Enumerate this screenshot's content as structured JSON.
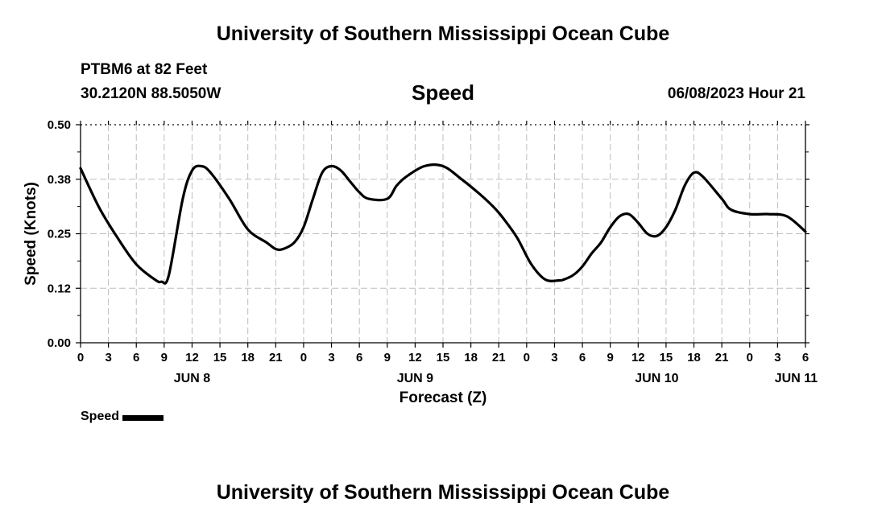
{
  "header": {
    "title": "University of Southern Mississippi Ocean Cube",
    "station": "PTBM6 at 82 Feet",
    "coords": "30.2120N  88.5050W",
    "date": "06/08/2023 Hour 21"
  },
  "footer": {
    "title": "University of Southern Mississippi Ocean Cube"
  },
  "legend": {
    "label": "Speed"
  },
  "chart_data": {
    "type": "line",
    "title": "Speed",
    "xlabel": "Forecast (Z)",
    "ylabel": "Speed (Knots)",
    "ylim": [
      0.0,
      0.5
    ],
    "yticks": [
      "0.00",
      "0.12",
      "0.25",
      "0.38",
      "0.50"
    ],
    "xlim_hours": [
      0,
      78
    ],
    "xticks": [
      "0",
      "3",
      "6",
      "9",
      "12",
      "15",
      "18",
      "21",
      "0",
      "3",
      "6",
      "9",
      "12",
      "15",
      "18",
      "21",
      "0",
      "3",
      "6",
      "9",
      "12",
      "15",
      "18",
      "21",
      "0",
      "3",
      "6"
    ],
    "date_labels": [
      {
        "label": "JUN 8",
        "hour": 12
      },
      {
        "label": "JUN 9",
        "hour": 36
      },
      {
        "label": "JUN 10",
        "hour": 62
      },
      {
        "label": "JUN 11",
        "hour": 77
      }
    ],
    "grid": true,
    "line_color": "#000000",
    "series": [
      {
        "name": "Speed",
        "x": [
          0,
          2,
          4,
          6,
          8,
          8.7,
          9.5,
          11,
          12,
          13,
          14,
          16,
          18,
          20,
          21,
          21.8,
          23,
          24,
          25,
          26,
          27,
          28,
          29,
          30,
          31,
          33,
          34,
          35,
          37,
          39,
          41,
          43,
          44.5,
          45.5,
          47,
          48.5,
          50,
          51.5,
          52,
          53,
          54,
          55,
          56,
          57,
          58,
          59,
          60,
          61,
          62,
          63,
          64,
          65,
          66,
          67,
          69,
          70,
          72,
          74,
          76,
          78
        ],
        "y": [
          0.4,
          0.31,
          0.24,
          0.18,
          0.145,
          0.14,
          0.155,
          0.33,
          0.395,
          0.405,
          0.39,
          0.33,
          0.26,
          0.23,
          0.215,
          0.215,
          0.23,
          0.265,
          0.33,
          0.39,
          0.405,
          0.395,
          0.37,
          0.345,
          0.33,
          0.33,
          0.36,
          0.38,
          0.405,
          0.405,
          0.375,
          0.34,
          0.31,
          0.285,
          0.24,
          0.18,
          0.145,
          0.143,
          0.145,
          0.155,
          0.175,
          0.205,
          0.23,
          0.265,
          0.29,
          0.295,
          0.275,
          0.25,
          0.245,
          0.265,
          0.305,
          0.36,
          0.39,
          0.38,
          0.33,
          0.305,
          0.295,
          0.295,
          0.29,
          0.255
        ]
      }
    ]
  }
}
